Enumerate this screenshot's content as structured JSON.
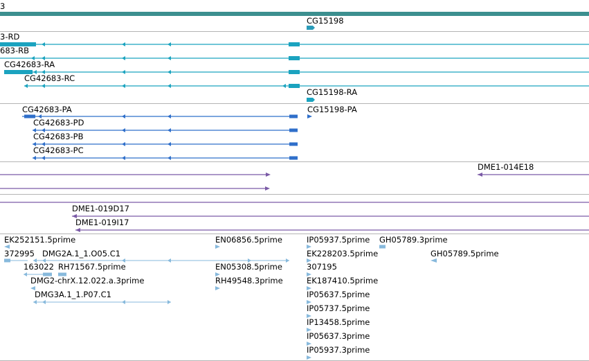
{
  "colors": {
    "gene": "#3c8f8f",
    "transcript": "#1ba3bf",
    "cds": "#2f6fca",
    "clone": "#7a5aa6",
    "est": "#87b9dc",
    "separator": "#b4b4b4"
  },
  "tracks": [
    {
      "name": "gene-track",
      "features": [
        {
          "name": "gene-span-feature",
          "label": "3",
          "icon": "gene-bar"
        },
        {
          "name": "gene-cg15198-feature",
          "label": "CG15198",
          "icon": "arrow-right"
        }
      ]
    },
    {
      "name": "transcript-track",
      "features": [
        {
          "name": "transcript-rd",
          "label": "3-RD"
        },
        {
          "name": "transcript-rb",
          "label": "683-RB"
        },
        {
          "name": "transcript-ra",
          "label": "CG42683-RA"
        },
        {
          "name": "transcript-rc",
          "label": "CG42683-RC"
        },
        {
          "name": "transcript-cg15198-ra",
          "label": "CG15198-RA"
        }
      ]
    },
    {
      "name": "cds-track",
      "features": [
        {
          "name": "cds-pa",
          "label": "CG42683-PA"
        },
        {
          "name": "cds-cg15198-pa",
          "label": "CG15198-PA"
        },
        {
          "name": "cds-pd",
          "label": "CG42683-PD"
        },
        {
          "name": "cds-pb",
          "label": "CG42683-PB"
        },
        {
          "name": "cds-pc",
          "label": "CG42683-PC"
        }
      ]
    },
    {
      "name": "clone-track-1",
      "features": [
        {
          "name": "clone-014e18",
          "label": "DME1-014E18"
        }
      ]
    },
    {
      "name": "clone-track-2",
      "features": [
        {
          "name": "clone-019d17",
          "label": "DME1-019D17"
        },
        {
          "name": "clone-019i17",
          "label": "DME1-019I17"
        }
      ]
    },
    {
      "name": "est-track",
      "features": [
        {
          "name": "est-ek252151",
          "label": "EK252151.5prime"
        },
        {
          "name": "est-en06856",
          "label": "EN06856.5prime"
        },
        {
          "name": "est-ip05937-5",
          "label": "IP05937.5prime"
        },
        {
          "name": "est-gh05789-3",
          "label": "GH05789.3prime"
        },
        {
          "name": "est-372995",
          "label": "372995"
        },
        {
          "name": "est-dmg2a",
          "label": "DMG2A.1_1.O05.C1"
        },
        {
          "name": "est-ek228203",
          "label": "EK228203.5prime"
        },
        {
          "name": "est-gh05789-5",
          "label": "GH05789.5prime"
        },
        {
          "name": "est-163022",
          "label": "163022"
        },
        {
          "name": "est-rh71567",
          "label": "RH71567.5prime"
        },
        {
          "name": "est-en05308",
          "label": "EN05308.5prime"
        },
        {
          "name": "est-307195",
          "label": "307195"
        },
        {
          "name": "est-dmg2-chrx",
          "label": "DMG2-chrX.12.022.a.3prime"
        },
        {
          "name": "est-rh49548",
          "label": "RH49548.3prime"
        },
        {
          "name": "est-ek187410",
          "label": "EK187410.5prime"
        },
        {
          "name": "est-dmg3a",
          "label": "DMG3A.1_1.P07.C1"
        },
        {
          "name": "est-ip05637-5",
          "label": "IP05637.5prime"
        },
        {
          "name": "est-ip05737",
          "label": "IP05737.5prime"
        },
        {
          "name": "est-ip13458",
          "label": "IP13458.5prime"
        },
        {
          "name": "est-ip05637-3",
          "label": "IP05637.3prime"
        },
        {
          "name": "est-ip05937-3",
          "label": "IP05937.3prime"
        }
      ]
    }
  ]
}
